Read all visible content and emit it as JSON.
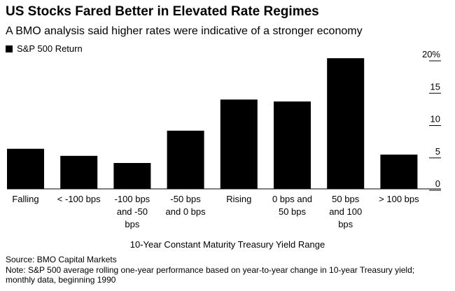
{
  "header": {
    "title": "US Stocks Fared Better in Elevated Rate Regimes",
    "subtitle": "A BMO analysis said higher rates were indicative of a stronger economy"
  },
  "legend": {
    "label": "S&P 500 Return"
  },
  "chart_data": {
    "type": "bar",
    "title": "US Stocks Fared Better in Elevated Rate Regimes",
    "subtitle": "A BMO analysis said higher rates were indicative of a stronger economy",
    "xlabel": "10-Year Constant Maturity Treasury Yield Range",
    "ylabel": "",
    "categories": [
      [
        "Falling"
      ],
      [
        "< -100 bps"
      ],
      [
        "-100 bps",
        "and -50",
        "bps"
      ],
      [
        "-50 bps",
        "and 0 bps"
      ],
      [
        "Rising"
      ],
      [
        "0 bps and",
        "50 bps"
      ],
      [
        "50 bps",
        "and 100",
        "bps"
      ],
      [
        "> 100 bps"
      ]
    ],
    "series": [
      {
        "name": "S&P 500 Return",
        "values": [
          6.2,
          5.1,
          4.0,
          9.0,
          13.8,
          13.5,
          20.2,
          5.3
        ]
      }
    ],
    "ylim": [
      0,
      20
    ],
    "yticks": [
      0,
      5,
      10,
      15,
      20
    ],
    "ytick_labels": [
      "0",
      "5",
      "10",
      "15",
      "20%"
    ],
    "axis_position": "right",
    "grid": false,
    "legend_position": "top-left",
    "bar_color": "#000000"
  },
  "footer": {
    "source": "Source: BMO Capital Markets",
    "note": "Note: S&P 500 average rolling one-year performance based on year-to-year change in 10-year Treasury yield; monthly data, beginning 1990"
  }
}
